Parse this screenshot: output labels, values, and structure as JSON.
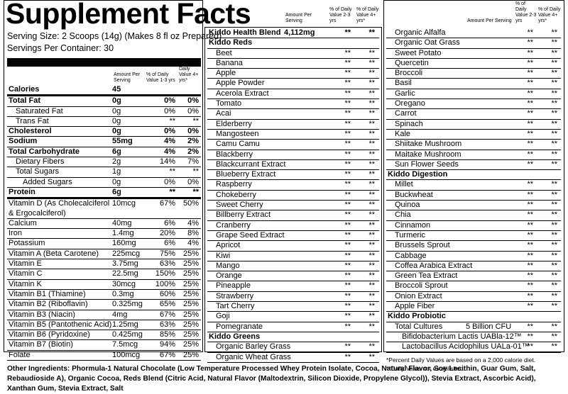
{
  "title": "Supplement Facts",
  "serving_size": "Serving Size: 2 Scoops (14g) (Makes 8 fl oz Prepared)",
  "servings": "Servings Per Container: 30",
  "col1": {
    "headers": [
      "Amount Per Serving",
      "% of Daily Value 1-3 yrs",
      "% of Daily Value 4+ yrs*"
    ],
    "rows": [
      [
        "Calories",
        "45"
      ],
      [
        "Total Fat",
        "0g",
        "0%",
        "0%"
      ],
      [
        "Saturated Fat",
        "0g",
        "0%",
        "0%"
      ],
      [
        "Trans Fat",
        "0g",
        "**",
        "**"
      ],
      [
        "Cholesterol",
        "0g",
        "0%",
        "0%"
      ],
      [
        "Sodium",
        "55mg",
        "4%",
        "2%"
      ],
      [
        "Total Carbohydrate",
        "6g",
        "4%",
        "2%"
      ],
      [
        "Dietary Fibers",
        "2g",
        "14%",
        "7%"
      ],
      [
        "Total Sugars",
        "1g",
        "**",
        "**"
      ],
      [
        "Added Sugars",
        "0g",
        "0%",
        "0%"
      ],
      [
        "Protein",
        "6g",
        "**",
        "**"
      ],
      [
        "Vitamin D (As Cholecalciferol & Ergocalciferol)",
        "10mcg",
        "67%",
        "50%"
      ],
      [
        "Calcium",
        "40mg",
        "6%",
        "4%"
      ],
      [
        "Iron",
        "1.4mg",
        "20%",
        "8%"
      ],
      [
        "Potassium",
        "160mg",
        "6%",
        "4%"
      ],
      [
        "Vitamin A (Beta Carotene)",
        "225mcg",
        "75%",
        "25%"
      ],
      [
        "Vitamin E",
        "3.75mg",
        "63%",
        "25%"
      ],
      [
        "Vitamin C",
        "22.5mg",
        "150%",
        "25%"
      ],
      [
        "Vitamin K",
        "30mcg",
        "100%",
        "25%"
      ],
      [
        "Vitamin B1 (Thiamine)",
        "0.3mg",
        "60%",
        "25%"
      ],
      [
        "Vitamin B2 (Riboflavin)",
        "0.325mg",
        "65%",
        "25%"
      ],
      [
        "Vitamin B3 (Niacin)",
        "4mg",
        "67%",
        "25%"
      ],
      [
        "Vitamin B5 (Pantothenic Acid)",
        "1.25mg",
        "63%",
        "25%"
      ],
      [
        "Vitamin B6 (Pyridoxine)",
        "0.425mg",
        "85%",
        "25%"
      ],
      [
        "Vitamin B7 (Biotin)",
        "7.5mcg",
        "94%",
        "25%"
      ],
      [
        "Folate",
        "100mcg",
        "67%",
        "25%"
      ]
    ]
  },
  "col2": {
    "headers": [
      "Amount Per Serving",
      "% of Daily Value 2-3 yrs",
      "% of Daily Value 4+ yrs*"
    ],
    "rows": [
      [
        "Kiddo Health Blend",
        "4,112mg",
        "**",
        "**"
      ],
      [
        "Kiddo Reds"
      ],
      [
        "Beet",
        "**",
        "**"
      ],
      [
        "Banana",
        "**",
        "**"
      ],
      [
        "Apple",
        "**",
        "**"
      ],
      [
        "Apple Powder",
        "**",
        "**"
      ],
      [
        "Acerola Extract",
        "**",
        "**"
      ],
      [
        "Tomato",
        "**",
        "**"
      ],
      [
        "Acai",
        "**",
        "**"
      ],
      [
        "Elderberry",
        "**",
        "**"
      ],
      [
        "Mangosteen",
        "**",
        "**"
      ],
      [
        "Camu Camu",
        "**",
        "**"
      ],
      [
        "Blackberry",
        "**",
        "**"
      ],
      [
        "Blackcurrant Extract",
        "**",
        "**"
      ],
      [
        "Blueberry Extract",
        "**",
        "**"
      ],
      [
        "Raspberry",
        "**",
        "**"
      ],
      [
        "Chokeberry",
        "**",
        "**"
      ],
      [
        "Sweet Cherry",
        "**",
        "**"
      ],
      [
        "Billberry Extract",
        "**",
        "**"
      ],
      [
        "Cranberry",
        "**",
        "**"
      ],
      [
        "Grape Seed Extract",
        "**",
        "**"
      ],
      [
        "Apricot",
        "**",
        "**"
      ],
      [
        "Kiwi",
        "**",
        "**"
      ],
      [
        "Mango",
        "**",
        "**"
      ],
      [
        "Orange",
        "**",
        "**"
      ],
      [
        "Pineapple",
        "**",
        "**"
      ],
      [
        "Strawberry",
        "**",
        "**"
      ],
      [
        "Tart Cherry",
        "**",
        "**"
      ],
      [
        "Goji",
        "**",
        "**"
      ],
      [
        "Pomegranate",
        "**",
        "**"
      ],
      [
        "Kiddo Greens"
      ],
      [
        "Organic Barley Grass",
        "**",
        "**"
      ],
      [
        "Organic Wheat Grass",
        "**",
        "**"
      ]
    ]
  },
  "col3": {
    "headers": [
      "Amount Per Serving",
      "% of Daily Value 2-3 yrs",
      "% of Daily Value 4+ yrs*"
    ],
    "rows": [
      [
        "Organic Alfalfa",
        "**",
        "**"
      ],
      [
        "Organic Oat Grass",
        "**",
        "**"
      ],
      [
        "Sweet Potato",
        "**",
        "**"
      ],
      [
        "Quercetin",
        "**",
        "**"
      ],
      [
        "Broccoli",
        "**",
        "**"
      ],
      [
        "Basil",
        "**",
        "**"
      ],
      [
        "Garlic",
        "**",
        "**"
      ],
      [
        "Oregano",
        "**",
        "**"
      ],
      [
        "Carrot",
        "**",
        "**"
      ],
      [
        "Spinach",
        "**",
        "**"
      ],
      [
        "Kale",
        "**",
        "**"
      ],
      [
        "Shiitake Mushroom",
        "**",
        "**"
      ],
      [
        "Maitake Mushroom",
        "**",
        "**"
      ],
      [
        "Sun Flower Seeds",
        "**",
        "**"
      ],
      [
        "Kiddo Digestion"
      ],
      [
        "Millet",
        "**",
        "**"
      ],
      [
        "Buckwheat",
        "**",
        "**"
      ],
      [
        "Quinoa",
        "**",
        "**"
      ],
      [
        "Chia",
        "**",
        "**"
      ],
      [
        "Cinnamon",
        "**",
        "**"
      ],
      [
        "Turmeric",
        "**",
        "**"
      ],
      [
        "Brussels Sprout",
        "**",
        "**"
      ],
      [
        "Cabbage",
        "**",
        "**"
      ],
      [
        "Coffea Arabica Extract",
        "**",
        "**"
      ],
      [
        "Green Tea Extract",
        "**",
        "**"
      ],
      [
        "Broccoli Sprout",
        "**",
        "**"
      ],
      [
        "Onion Extract",
        "**",
        "**"
      ],
      [
        "Apple Fiber",
        "**",
        "**"
      ],
      [
        "Kiddo Probiotic"
      ],
      [
        "Total Cultures",
        "5 Billion CFU",
        "**",
        "**"
      ],
      [
        "Bifidobacterium Lactis UABla-12™",
        "**",
        "**"
      ],
      [
        "Lactobacillus Acidophilus UALa-01™",
        "**",
        "**"
      ]
    ],
    "notes": [
      "*Percent Daily Values are based on a 2,000 calorie diet.",
      "**Daily Value not established."
    ]
  },
  "other_ingredients": "Other Ingredients: Phormula-1 Natural Chocolate (Low Temperature Processed Whey Protein Isolate, Cocoa, Natural Flavor, Soy Lecithin, Guar Gum, Salt, Rebaudioside A), Organic Cocoa, Reds Blend (Citric Acid, Natural Flavor (Maltodextrin, Silicon Dioxide, Propylene Glycol)), Stevia Extract, Ascorbic Acid), Xanthan Gum, Stevia Extract, Salt"
}
